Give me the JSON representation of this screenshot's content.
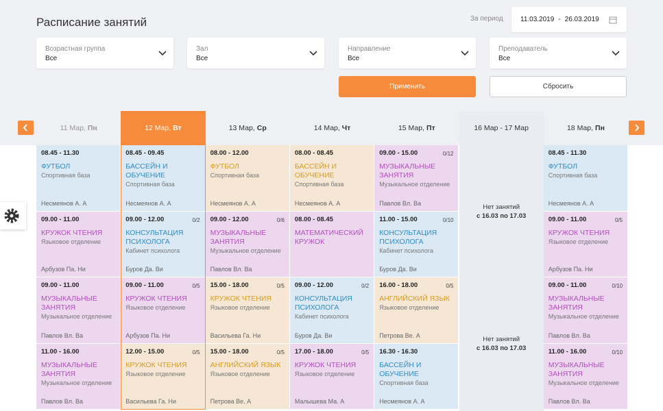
{
  "header": {
    "title": "Расписание занятий",
    "period_label": "За период",
    "date_from": "11.03.2019",
    "date_sep": "-",
    "date_to": "26.03.2019"
  },
  "filters": [
    {
      "label": "Возрастная группа",
      "value": "Все"
    },
    {
      "label": "Зал",
      "value": "Все"
    },
    {
      "label": "Направление",
      "value": "Все"
    },
    {
      "label": "Преподаватель",
      "value": "Все"
    }
  ],
  "buttons": {
    "apply": "Применить",
    "reset": "Сбросить"
  },
  "days": [
    {
      "date": "11 Мар,",
      "weekday": "Пн",
      "past": true,
      "cells": [
        {
          "time": "08.45 - 11.30",
          "title": "ФУТБОЛ",
          "place": "Спортивная база",
          "teacher": "Несмеянов А. А",
          "color": "#dbe9f5"
        },
        {
          "time": "09.00 - 11.00",
          "title": "КРУЖОК ЧТЕНИЯ",
          "place": "Языковое отделение",
          "teacher": "Арбузов Па. Ни",
          "color": "#ecd7ef"
        },
        {
          "time": "09.00 - 11.00",
          "title": "МУЗЫКАЛЬНЫЕ ЗАНЯТИЯ",
          "place": "Музыкальное отделение",
          "teacher": "Павлов Вл. Ва",
          "color": "#ecd7ef"
        },
        {
          "time": "11.00 - 16.00",
          "title": "МУЗЫКАЛЬНЫЕ ЗАНЯТИЯ",
          "place": "Музыкальное отделение",
          "teacher": "Павлов Вл. Ва",
          "color": "#ecd7ef"
        }
      ]
    },
    {
      "date": "12 Мар,",
      "weekday": "Вт",
      "active": true,
      "cells": [
        {
          "time": "08.45 - 09.45",
          "title": "БАССЕЙН И ОБУЧЕНИЕ",
          "place": "Спортивная база",
          "teacher": "Несмеянов А. А",
          "color": "#dbe9f5"
        },
        {
          "time": "09.00 - 12.00",
          "capacity": "0/2",
          "title": "КОНСУЛЬТАЦИЯ ПСИХОЛОГА",
          "place": "Кабинет психолога",
          "teacher": "Буров Да. Ви",
          "color": "#dbe9f5"
        },
        {
          "time": "09.00 - 11.00",
          "capacity": "0/5",
          "title": "КРУЖОК ЧТЕНИЯ",
          "place": "Языковое отделение",
          "teacher": "Арбузов Па. Ни",
          "color": "#ecd7ef"
        },
        {
          "time": "12.00 - 15.00",
          "capacity": "0/5",
          "title": "КРУЖОК ЧТЕНИЯ",
          "place": "Языковое отделение",
          "teacher": "Васильева Га. Ни",
          "color": "#f6e7d4"
        }
      ]
    },
    {
      "date": "13 Мар,",
      "weekday": "Ср",
      "cells": [
        {
          "time": "08.00 - 12.00",
          "title": "ФУТБОЛ",
          "place": "Спортивная база",
          "teacher": "Несмеянов А. А",
          "color": "#f6e7d4"
        },
        {
          "time": "09.00 - 12.00",
          "capacity": "0/6",
          "title": "МУЗЫКАЛЬНЫЕ ЗАНЯТИЯ",
          "place": "Музыкальное отделение",
          "teacher": "Павлов Вл. Ва",
          "color": "#ecd7ef"
        },
        {
          "time": "15.00 - 18.00",
          "capacity": "0/5",
          "title": "КРУЖОК ЧТЕНИЯ",
          "place": "Языковое отделение",
          "teacher": "Васильева Га. Ни",
          "color": "#f6e7d4"
        },
        {
          "time": "15.00 - 18.00",
          "capacity": "0/5",
          "title": "АНГЛИЙСКИЙ ЯЗЫК",
          "place": "Языковое отделение",
          "teacher": "Петрова Ве. А",
          "color": "#f6e7d4"
        }
      ]
    },
    {
      "date": "14 Мар,",
      "weekday": "Чт",
      "cells": [
        {
          "time": "08.00 - 08.45",
          "title": "БАССЕЙН И ОБУЧЕНИЕ",
          "place": "Спортивная база",
          "teacher": "Несмеянов А. А",
          "color": "#f6e7d4"
        },
        {
          "time": "08.00 - 08.45",
          "title": "МАТЕМАТИЧЕСКИЙ КРУЖОК",
          "color": "#ecd7ef"
        },
        {
          "time": "09.00 - 12.00",
          "capacity": "0/2",
          "title": "КОНСУЛЬТАЦИЯ ПСИХОЛОГА",
          "place": "Кабинет психолога",
          "teacher": "Буров Да. Ви",
          "color": "#dbe9f5"
        },
        {
          "time": "17.00 - 18.00",
          "capacity": "0/5",
          "title": "КРУЖОК ЧТЕНИЯ",
          "place": "Языковое отделение",
          "teacher": "Малышева Ма. А",
          "color": "#ecd7ef"
        }
      ]
    },
    {
      "date": "15 Мар,",
      "weekday": "Пт",
      "cells": [
        {
          "time": "09.00 - 15.00",
          "capacity": "0/12",
          "title": "МУЗЫКАЛЬНЫЕ ЗАНЯТИЯ",
          "place": "Музыкальное отделение",
          "teacher": "Павлов Вл. Ва",
          "color": "#ecd7ef"
        },
        {
          "time": "11.00 - 15.00",
          "capacity": "0/10",
          "title": "КОНСУЛЬТАЦИЯ ПСИХОЛОГА",
          "place": "Кабинет психолога",
          "teacher": "Буров Да. Ви",
          "color": "#dbe9f5"
        },
        {
          "time": "16.00 - 18.00",
          "capacity": "0/5",
          "title": "АНГЛИЙСКИЙ ЯЗЫК",
          "place": "Языковое отделение",
          "teacher": "Петрова Ве. А",
          "color": "#f6e7d4"
        },
        {
          "time": "16.30 - 16.30",
          "title": "БАССЕЙН И ОБУЧЕНИЕ",
          "place": "Спортивная база",
          "teacher": "Несмеянов А. А",
          "color": "#dbe9f5"
        }
      ]
    },
    {
      "label": "16 Мар - 17 Мар",
      "weekend": true,
      "blocks": [
        {
          "text": "Нет занятий",
          "range": "с 16.03 по 17.03"
        },
        {
          "text": "Нет занятий",
          "range": "с 16.03 по 17.03"
        }
      ]
    },
    {
      "date": "18 Мар,",
      "weekday": "Пн",
      "cells": [
        {
          "time": "08.45 - 11.30",
          "title": "ФУТБОЛ",
          "place": "Спортивная база",
          "teacher": "Несмеянов А. А",
          "color": "#dbe9f5"
        },
        {
          "time": "09.00 - 11.00",
          "capacity": "0/5",
          "title": "КРУЖОК ЧТЕНИЯ",
          "place": "Языковое отделение",
          "teacher": "Арбузов Па. Ни",
          "color": "#ecd7ef"
        },
        {
          "time": "09.00 - 11.00",
          "capacity": "0/10",
          "title": "МУЗЫКАЛЬНЫЕ ЗАНЯТИЯ",
          "place": "Музыкальное отделение",
          "teacher": "Павлов Вл. Ва",
          "color": "#ecd7ef"
        },
        {
          "time": "11.00 - 16.00",
          "capacity": "0/10",
          "title": "МУЗЫКАЛЬНЫЕ ЗАНЯТИЯ",
          "place": "Музыкальное отделение",
          "teacher": "Павлов Вл. Ва",
          "color": "#ecd7ef"
        }
      ]
    }
  ]
}
